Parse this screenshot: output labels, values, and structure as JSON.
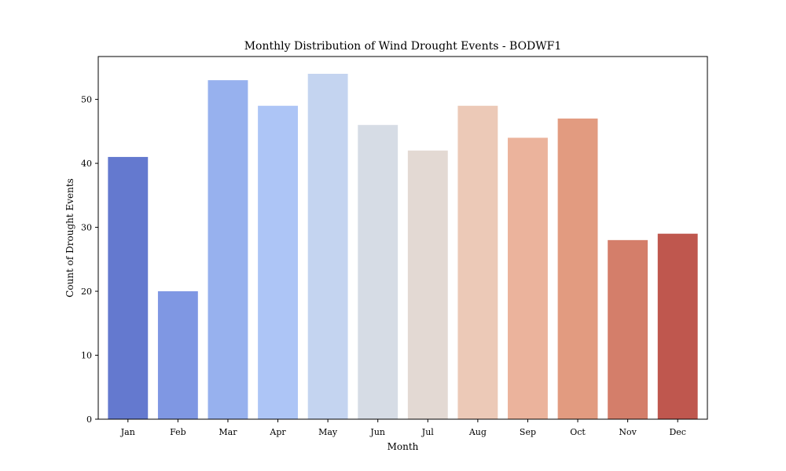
{
  "chart_data": {
    "type": "bar",
    "title": "Monthly Distribution of Wind Drought Events - BODWF1",
    "xlabel": "Month",
    "ylabel": "Count of Drought Events",
    "categories": [
      "Jan",
      "Feb",
      "Mar",
      "Apr",
      "May",
      "Jun",
      "Jul",
      "Aug",
      "Sep",
      "Oct",
      "Nov",
      "Dec"
    ],
    "values": [
      41,
      20,
      53,
      49,
      54,
      46,
      42,
      49,
      44,
      47,
      28,
      29
    ],
    "ylim": [
      0,
      56.7
    ],
    "yticks": [
      0,
      10,
      20,
      30,
      40,
      50
    ],
    "grid": false,
    "legend": "none",
    "colors": [
      "#6479cf",
      "#7f97e3",
      "#97b1ee",
      "#adc5f6",
      "#c4d4f0",
      "#d6dce5",
      "#e3d9d3",
      "#ecc9b7",
      "#ebb39c",
      "#e29b80",
      "#d47e6a",
      "#bf574e"
    ]
  }
}
